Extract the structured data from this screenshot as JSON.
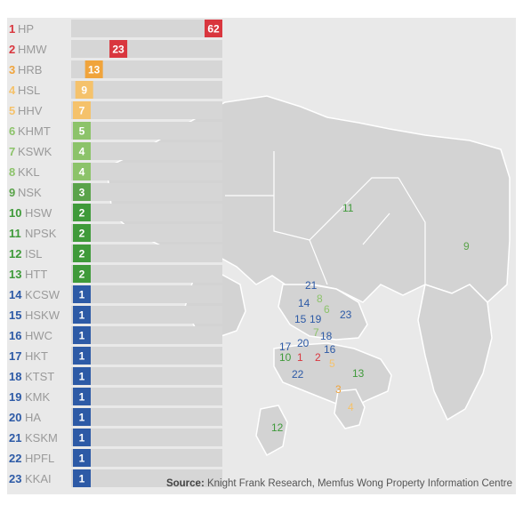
{
  "chart_data": {
    "type": "bar",
    "orientation": "horizontal",
    "categories": [
      "HP",
      "HMW",
      "HRB",
      "HSL",
      "HHV",
      "KHMT",
      "KSWK",
      "KKL",
      "NSK",
      "HSW",
      "NPSK",
      "ISL",
      "HTT",
      "KCSW",
      "HSKW",
      "HWC",
      "HKT",
      "KTST",
      "KMK",
      "HA",
      "KSKM",
      "HPFL",
      "KKAI"
    ],
    "ranks": [
      1,
      2,
      3,
      4,
      5,
      6,
      7,
      8,
      9,
      10,
      11,
      12,
      13,
      14,
      15,
      16,
      17,
      18,
      19,
      20,
      21,
      22,
      23
    ],
    "values": [
      62,
      23,
      13,
      9,
      7,
      5,
      4,
      4,
      3,
      2,
      2,
      2,
      2,
      1,
      1,
      1,
      1,
      1,
      1,
      1,
      1,
      1,
      1
    ],
    "tier_colors": [
      "#d9363e",
      "#d9363e",
      "#f0a43c",
      "#f5c26b",
      "#f5c26b",
      "#8cc36a",
      "#8cc36a",
      "#8cc36a",
      "#5aa34a",
      "#3f9a3a",
      "#3f9a3a",
      "#3f9a3a",
      "#3f9a3a",
      "#2d5aa6",
      "#2d5aa6",
      "#2d5aa6",
      "#2d5aa6",
      "#2d5aa6",
      "#2d5aa6",
      "#2d5aa6",
      "#2d5aa6",
      "#2d5aa6",
      "#2d5aa6"
    ],
    "bar_track_color": "#d6d6d6",
    "map_labels": [
      "11",
      "9",
      "21",
      "14",
      "8",
      "6",
      "15",
      "19",
      "23",
      "7",
      "18",
      "17",
      "20",
      "16",
      "10",
      "1",
      "2",
      "5",
      "13",
      "22",
      "3",
      "4",
      "12"
    ],
    "title": "",
    "xlabel": "",
    "ylabel": ""
  },
  "source": {
    "prefix": "Source:",
    "text": " Knight Frank Research, Memfus Wong Property Information Centre"
  }
}
